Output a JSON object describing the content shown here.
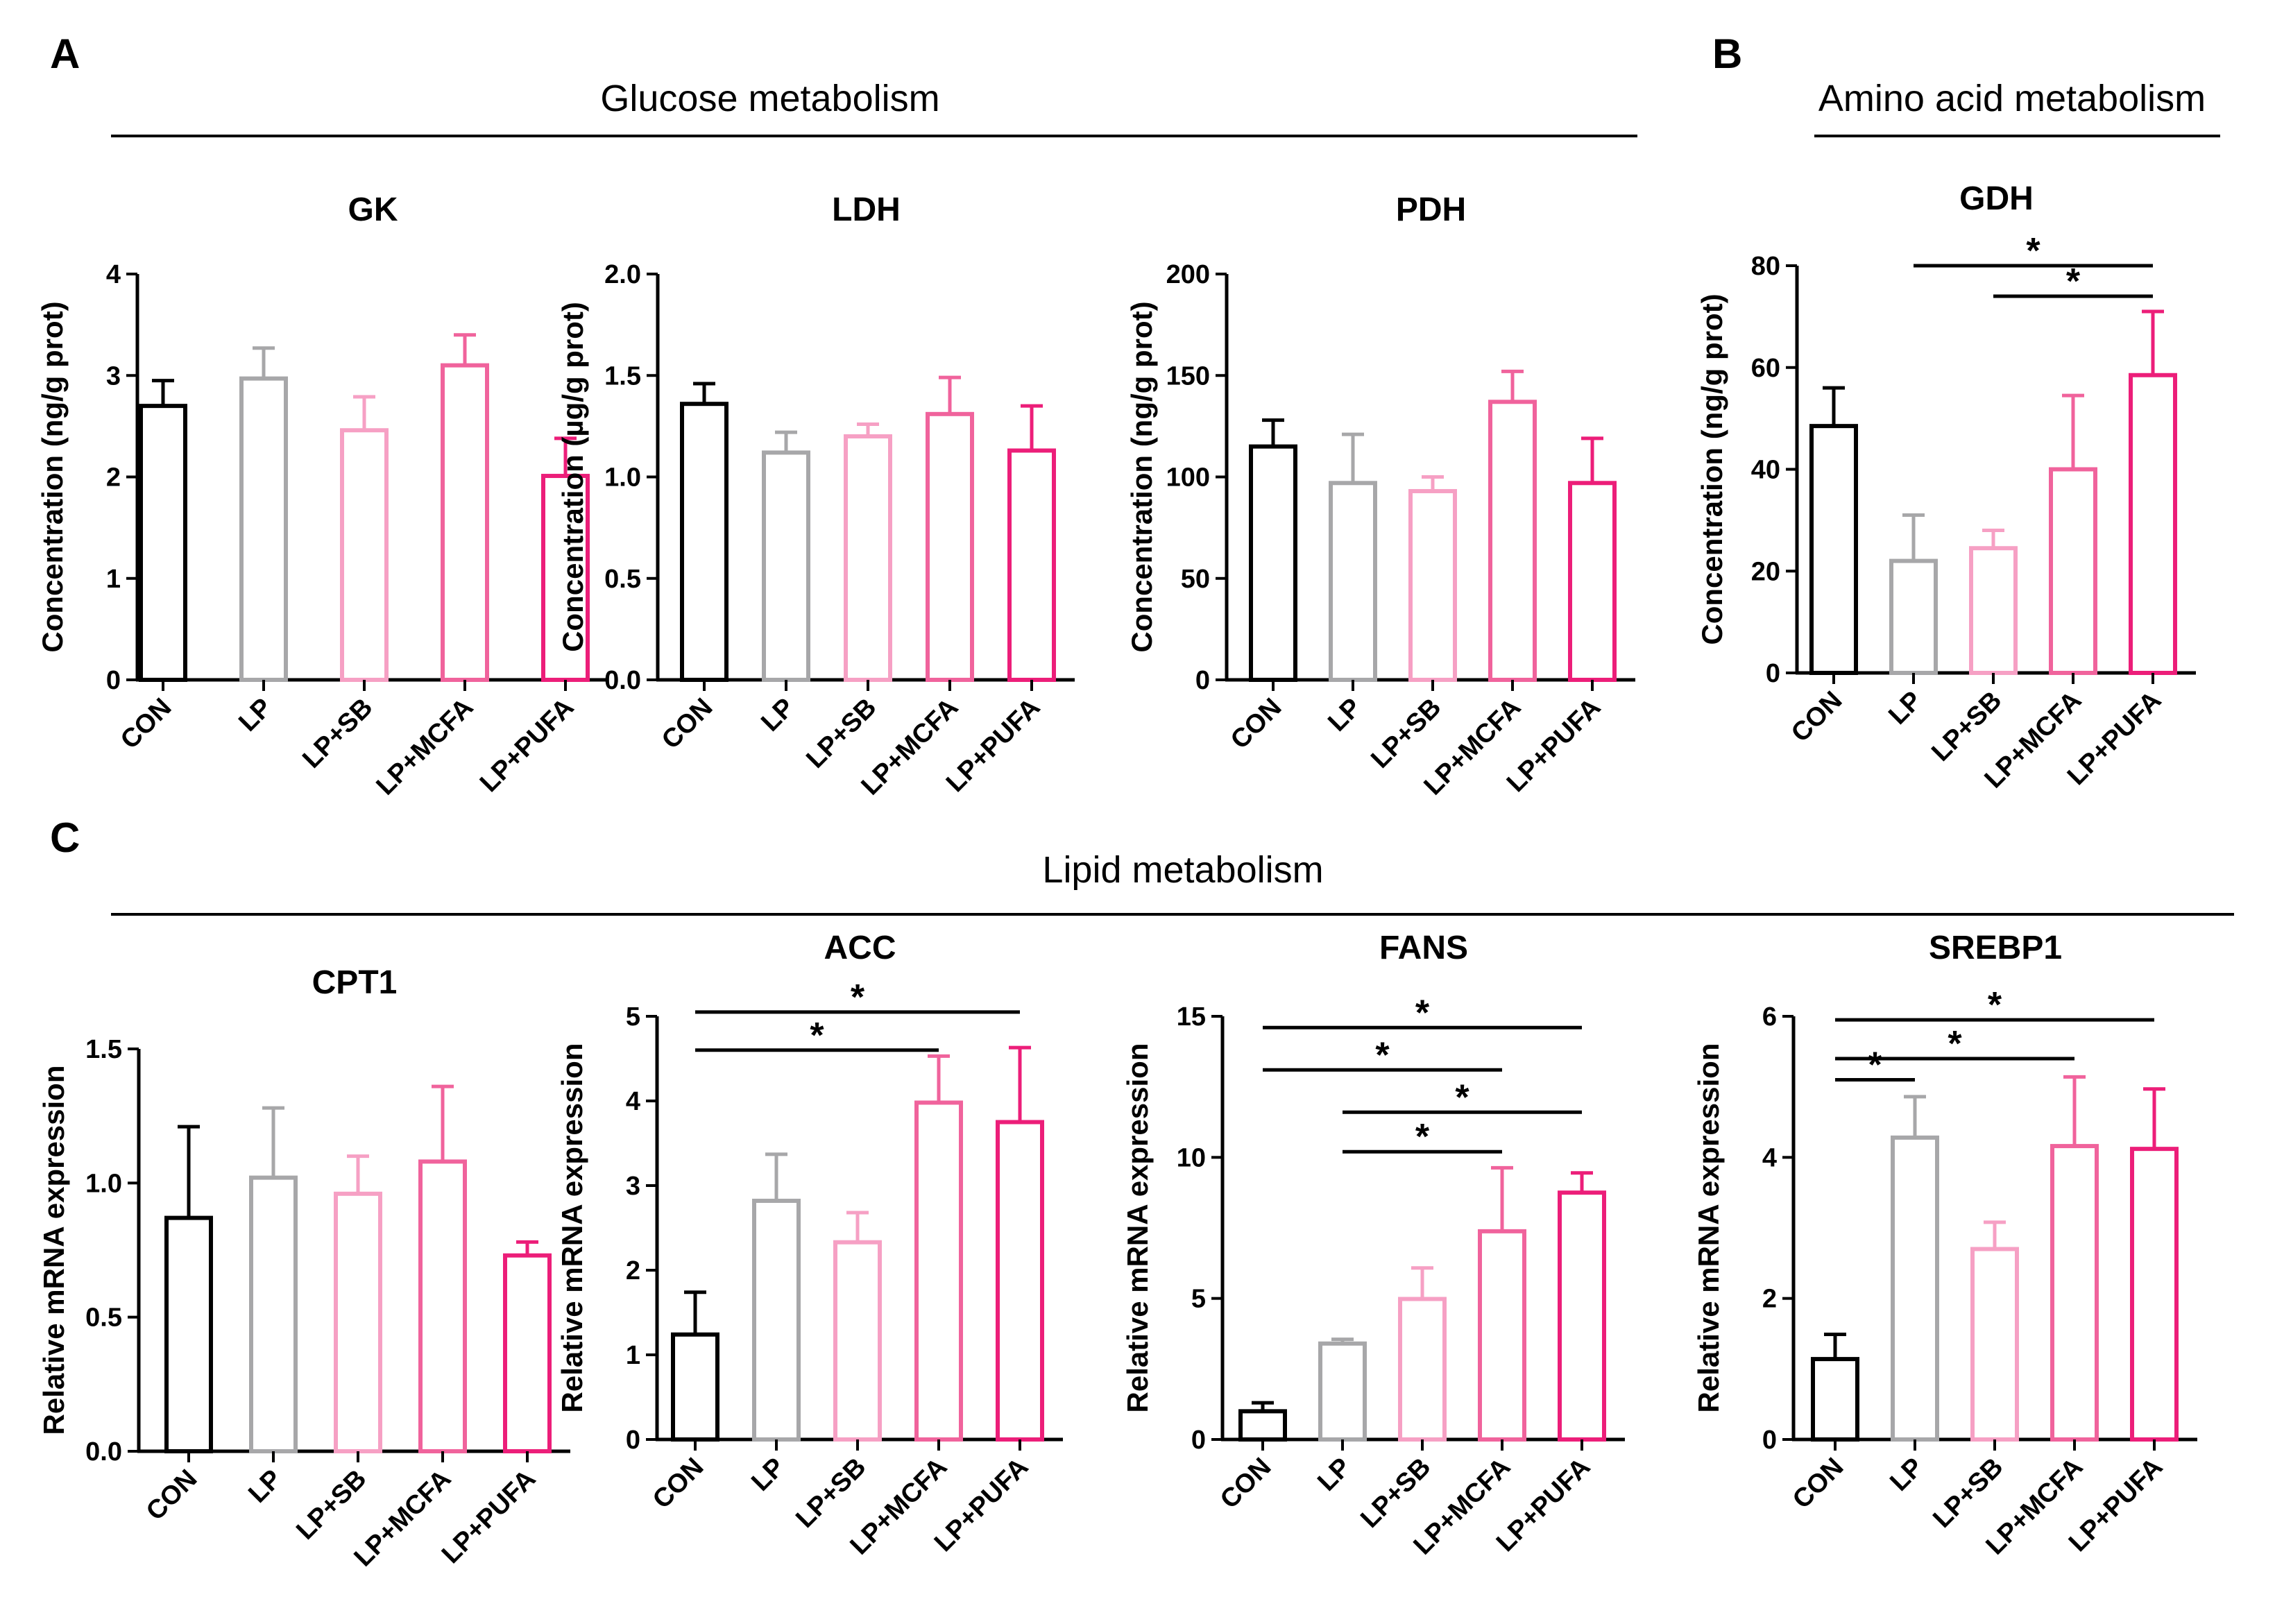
{
  "panel_labels": {
    "a": "A",
    "b": "B",
    "c": "C"
  },
  "section_titles": {
    "glucose": "Glucose metabolism",
    "amino": "Amino acid metabolism",
    "lipid": "Lipid metabolism"
  },
  "colors": {
    "CON": "#000000",
    "LP": "#a7a7a9",
    "LP+SB": "#f6a0c4",
    "LP+MCFA": "#f0639c",
    "LP+PUFA": "#ec1e79"
  },
  "chart_data": [
    {
      "type": "bar",
      "panel": "A",
      "title": "GK",
      "ylabel": "Concentration (ng/g prot)",
      "categories": [
        "CON",
        "LP",
        "LP+SB",
        "LP+MCFA",
        "LP+PUFA"
      ],
      "values": [
        2.7,
        2.97,
        2.46,
        3.1,
        2.01
      ],
      "errors": [
        0.25,
        0.3,
        0.33,
        0.3,
        0.37
      ],
      "ylim": [
        0,
        4
      ],
      "yticks": [
        "0",
        "1",
        "2",
        "3",
        "4"
      ],
      "significance": []
    },
    {
      "type": "bar",
      "panel": "A",
      "title": "LDH",
      "ylabel": "Concentration (µg/g prot)",
      "categories": [
        "CON",
        "LP",
        "LP+SB",
        "LP+MCFA",
        "LP+PUFA"
      ],
      "values": [
        1.36,
        1.12,
        1.2,
        1.31,
        1.13
      ],
      "errors": [
        0.1,
        0.1,
        0.06,
        0.18,
        0.22
      ],
      "ylim": [
        0,
        2
      ],
      "yticks": [
        "0.0",
        "0.5",
        "1.0",
        "1.5",
        "2.0"
      ],
      "significance": []
    },
    {
      "type": "bar",
      "panel": "A",
      "title": "PDH",
      "ylabel": "Concentration (ng/g prot)",
      "categories": [
        "CON",
        "LP",
        "LP+SB",
        "LP+MCFA",
        "LP+PUFA"
      ],
      "values": [
        115,
        97,
        93,
        137,
        97
      ],
      "errors": [
        13,
        24,
        7,
        15,
        22
      ],
      "ylim": [
        0,
        200
      ],
      "yticks": [
        "0",
        "50",
        "100",
        "150",
        "200"
      ],
      "significance": []
    },
    {
      "type": "bar",
      "panel": "B",
      "title": "GDH",
      "ylabel": "Concentration (ng/g prot)",
      "categories": [
        "CON",
        "LP",
        "LP+SB",
        "LP+MCFA",
        "LP+PUFA"
      ],
      "values": [
        48.5,
        22,
        24.5,
        40,
        58.5
      ],
      "errors": [
        7.5,
        9,
        3.5,
        14.5,
        12.5
      ],
      "ylim": [
        0,
        80
      ],
      "yticks": [
        "0",
        "20",
        "40",
        "60",
        "80"
      ],
      "significance": [
        {
          "from": 1,
          "to": 4,
          "y": 80,
          "label": "*"
        },
        {
          "from": 2,
          "to": 4,
          "y": 74,
          "label": "*"
        }
      ]
    },
    {
      "type": "bar",
      "panel": "C",
      "title": "CPT1",
      "ylabel": "Relative mRNA expression",
      "categories": [
        "CON",
        "LP",
        "LP+SB",
        "LP+MCFA",
        "LP+PUFA"
      ],
      "values": [
        0.87,
        1.02,
        0.96,
        1.08,
        0.73
      ],
      "errors": [
        0.34,
        0.26,
        0.14,
        0.28,
        0.05
      ],
      "ylim": [
        0,
        1.5
      ],
      "yticks": [
        "0.0",
        "0.5",
        "1.0",
        "1.5"
      ],
      "significance": []
    },
    {
      "type": "bar",
      "panel": "C",
      "title": "ACC",
      "ylabel": "Relative mRNA expression",
      "categories": [
        "CON",
        "LP",
        "LP+SB",
        "LP+MCFA",
        "LP+PUFA"
      ],
      "values": [
        1.24,
        2.82,
        2.33,
        3.98,
        3.75
      ],
      "errors": [
        0.5,
        0.55,
        0.35,
        0.55,
        0.88
      ],
      "ylim": [
        0,
        5
      ],
      "yticks": [
        "0",
        "1",
        "2",
        "3",
        "4",
        "5"
      ],
      "significance": [
        {
          "from": 0,
          "to": 4,
          "y": 5.05,
          "label": "*"
        },
        {
          "from": 0,
          "to": 3,
          "y": 4.6,
          "label": "*"
        }
      ]
    },
    {
      "type": "bar",
      "panel": "C",
      "title": "FANS",
      "ylabel": "Relative mRNA expression",
      "categories": [
        "CON",
        "LP",
        "LP+SB",
        "LP+MCFA",
        "LP+PUFA"
      ],
      "values": [
        1.0,
        3.4,
        4.98,
        7.38,
        8.75
      ],
      "errors": [
        0.3,
        0.15,
        1.1,
        2.25,
        0.7
      ],
      "ylim": [
        0,
        15
      ],
      "yticks": [
        "0",
        "5",
        "10",
        "15"
      ],
      "significance": [
        {
          "from": 0,
          "to": 4,
          "y": 14.6,
          "label": "*"
        },
        {
          "from": 0,
          "to": 3,
          "y": 13.1,
          "label": "*"
        },
        {
          "from": 1,
          "to": 4,
          "y": 11.6,
          "label": "*"
        },
        {
          "from": 1,
          "to": 3,
          "y": 10.2,
          "label": "*"
        }
      ]
    },
    {
      "type": "bar",
      "panel": "C",
      "title": "SREBP1",
      "ylabel": "Relative mRNA expression",
      "categories": [
        "CON",
        "LP",
        "LP+SB",
        "LP+MCFA",
        "LP+PUFA"
      ],
      "values": [
        1.14,
        4.28,
        2.7,
        4.16,
        4.12
      ],
      "errors": [
        0.35,
        0.58,
        0.38,
        0.98,
        0.85
      ],
      "ylim": [
        0,
        6
      ],
      "yticks": [
        "0",
        "2",
        "4",
        "6"
      ],
      "significance": [
        {
          "from": 0,
          "to": 4,
          "y": 5.95,
          "label": "*"
        },
        {
          "from": 0,
          "to": 3,
          "y": 5.4,
          "label": "*"
        },
        {
          "from": 0,
          "to": 1,
          "y": 5.1,
          "label": "*"
        }
      ]
    }
  ]
}
